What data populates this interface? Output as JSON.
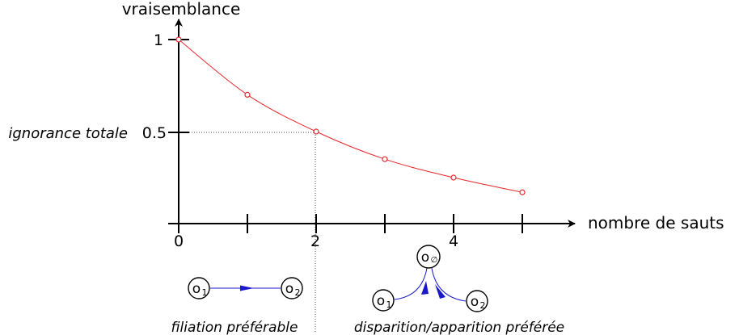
{
  "chart_data": {
    "type": "line",
    "ylabel": "vraisemblance",
    "xlabel": "nombre de sauts",
    "x_ticks": [
      0,
      1,
      2,
      3,
      4,
      5
    ],
    "x_tick_labels": [
      "0",
      "2",
      "4"
    ],
    "y_tick_labels": [
      "1",
      "0.5"
    ],
    "xlim": [
      0,
      5.4
    ],
    "ylim": [
      0,
      1
    ],
    "grid": false,
    "series": [
      {
        "color": "#e8262b",
        "x": [
          0,
          1,
          2,
          3,
          4,
          5
        ],
        "y": [
          1.0,
          0.7,
          0.5,
          0.35,
          0.25,
          0.17
        ]
      }
    ],
    "reference": {
      "x": 2,
      "y": 0.5,
      "label": "ignorance totale"
    }
  },
  "annotations": {
    "left_caption": "filiation préférable",
    "right_caption": "disparition/apparition préférée",
    "left_nodes": [
      "o",
      "o"
    ],
    "left_subs": [
      "1",
      "2"
    ],
    "right_nodes": [
      "o",
      "o",
      "o"
    ],
    "right_subs": [
      "1",
      "2",
      "∅"
    ],
    "edge_color": "#1a1acc"
  }
}
